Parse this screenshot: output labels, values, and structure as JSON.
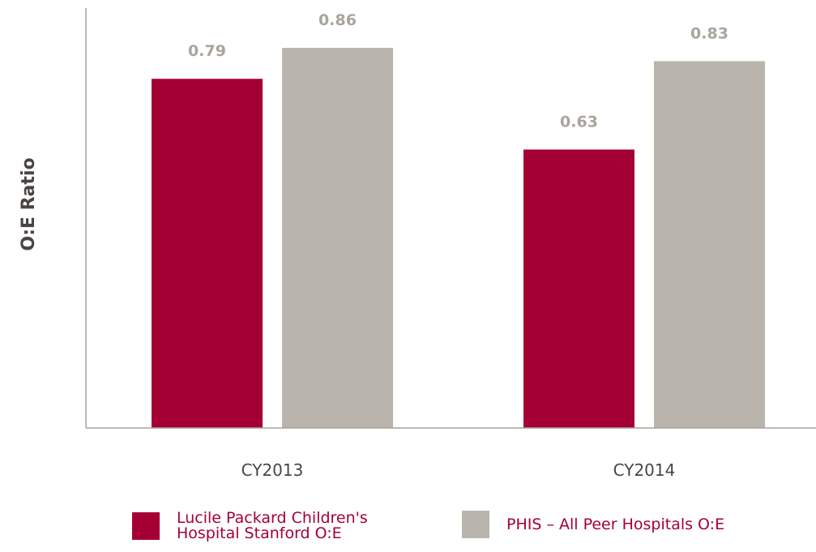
{
  "chart_data": {
    "type": "bar",
    "title": "",
    "xlabel": "",
    "ylabel": "O:E Ratio",
    "categories": [
      "CY2013",
      "CY2014"
    ],
    "series": [
      {
        "name": "Lucile Packard Children's Hospital Stanford O:E",
        "values": [
          0.79,
          0.63
        ],
        "value_labels": [
          "0.79",
          "0.63"
        ],
        "color": "#a50034"
      },
      {
        "name": "PHIS – All Peer Hospitals O:E",
        "values": [
          0.86,
          0.83
        ],
        "value_labels": [
          "0.86",
          "0.83"
        ],
        "color": "#b9b5ad"
      }
    ],
    "ylim": [
      0,
      0.95
    ],
    "grid": false,
    "legend_placement": "bottom"
  },
  "legend": {
    "items": [
      {
        "lines": [
          "Lucile Packard Children's",
          "Hospital Stanford O:E"
        ],
        "color": "#a50034",
        "text_color": "#a50034"
      },
      {
        "lines": [
          "PHIS – All Peer Hospitals O:E"
        ],
        "color": "#b9b5ad",
        "text_color": "#a50034"
      }
    ]
  }
}
